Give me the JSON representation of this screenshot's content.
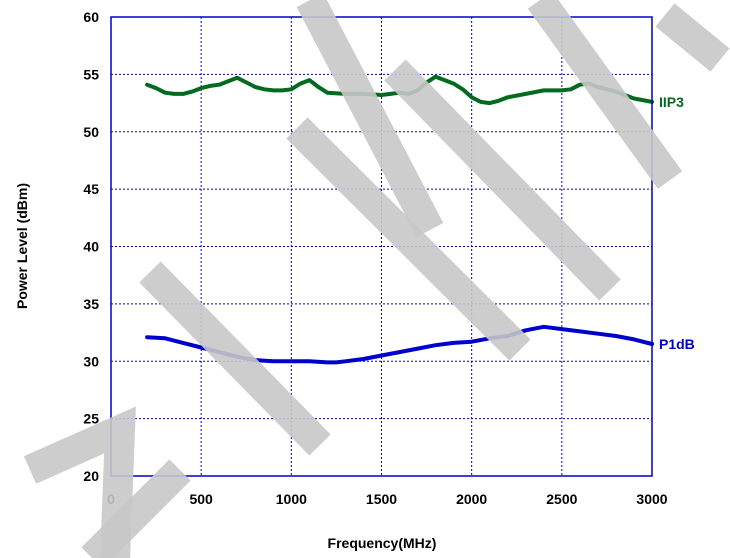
{
  "chart_data": {
    "type": "line",
    "title": "",
    "xlabel": "Frequency(MHz)",
    "ylabel": "Power Level (dBm)",
    "xlim": [
      0,
      3000
    ],
    "ylim": [
      20,
      60
    ],
    "xticks": [
      0,
      500,
      1000,
      1500,
      2000,
      2500,
      3000
    ],
    "yticks": [
      20,
      25,
      30,
      35,
      40,
      45,
      50,
      55,
      60
    ],
    "grid": true,
    "watermark": "FILE",
    "colors": {
      "frame": "#0000cc",
      "grid": "#0000cc",
      "watermark": "#c8c8c8"
    },
    "series": [
      {
        "name": "IIP3",
        "color": "#006a1e",
        "x": [
          200,
          250,
          300,
          350,
          400,
          450,
          500,
          550,
          600,
          650,
          700,
          750,
          800,
          850,
          900,
          950,
          1000,
          1050,
          1100,
          1150,
          1200,
          1300,
          1400,
          1500,
          1550,
          1600,
          1650,
          1700,
          1750,
          1800,
          1850,
          1900,
          1950,
          2000,
          2050,
          2100,
          2150,
          2200,
          2300,
          2400,
          2500,
          2550,
          2600,
          2650,
          2700,
          2800,
          2900,
          3000
        ],
        "y": [
          54.1,
          53.8,
          53.4,
          53.3,
          53.3,
          53.5,
          53.8,
          54.0,
          54.1,
          54.4,
          54.7,
          54.3,
          53.9,
          53.7,
          53.6,
          53.6,
          53.7,
          54.2,
          54.5,
          53.9,
          53.4,
          53.3,
          53.3,
          53.2,
          53.3,
          53.4,
          53.3,
          53.6,
          54.3,
          54.8,
          54.5,
          54.2,
          53.7,
          53.0,
          52.6,
          52.5,
          52.7,
          53.0,
          53.3,
          53.6,
          53.6,
          53.7,
          54.1,
          54.2,
          53.9,
          53.5,
          52.9,
          52.6
        ]
      },
      {
        "name": "P1dB",
        "color": "#0000cc",
        "x": [
          200,
          300,
          400,
          500,
          600,
          700,
          800,
          900,
          1000,
          1100,
          1200,
          1250,
          1300,
          1400,
          1500,
          1600,
          1700,
          1800,
          1900,
          2000,
          2100,
          2200,
          2300,
          2400,
          2500,
          2600,
          2700,
          2800,
          2900,
          3000
        ],
        "y": [
          32.1,
          32.0,
          31.6,
          31.2,
          30.8,
          30.4,
          30.1,
          30.0,
          30.0,
          30.0,
          29.9,
          29.9,
          30.0,
          30.2,
          30.5,
          30.8,
          31.1,
          31.4,
          31.6,
          31.7,
          32.0,
          32.2,
          32.7,
          33.0,
          32.8,
          32.6,
          32.4,
          32.2,
          31.9,
          31.5
        ]
      }
    ]
  }
}
